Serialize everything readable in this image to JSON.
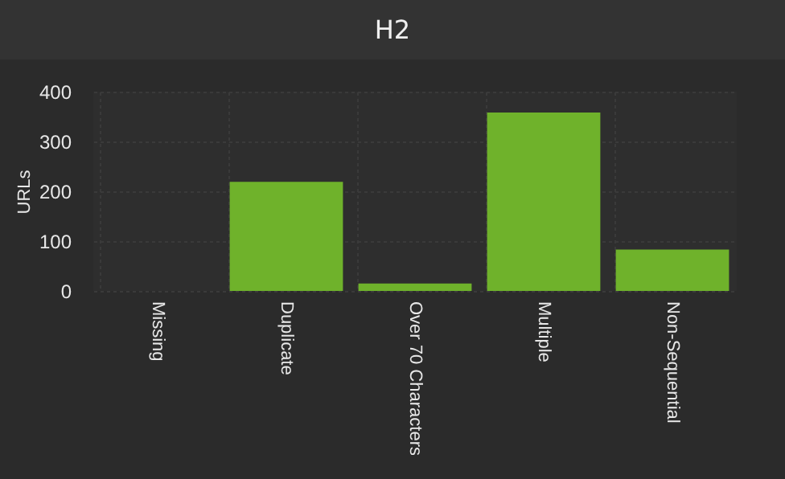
{
  "chart_data": {
    "type": "bar",
    "title": "H2",
    "ylabel": "URLs",
    "categories": [
      "Missing",
      "Duplicate",
      "Over 70 Characters",
      "Multiple",
      "Non-Sequential"
    ],
    "values": [
      0,
      219,
      15,
      358,
      83
    ],
    "color": "#6fb22b",
    "ylim": [
      0,
      400
    ],
    "yticks": [
      0,
      100,
      200,
      300,
      400
    ],
    "grid": true
  }
}
